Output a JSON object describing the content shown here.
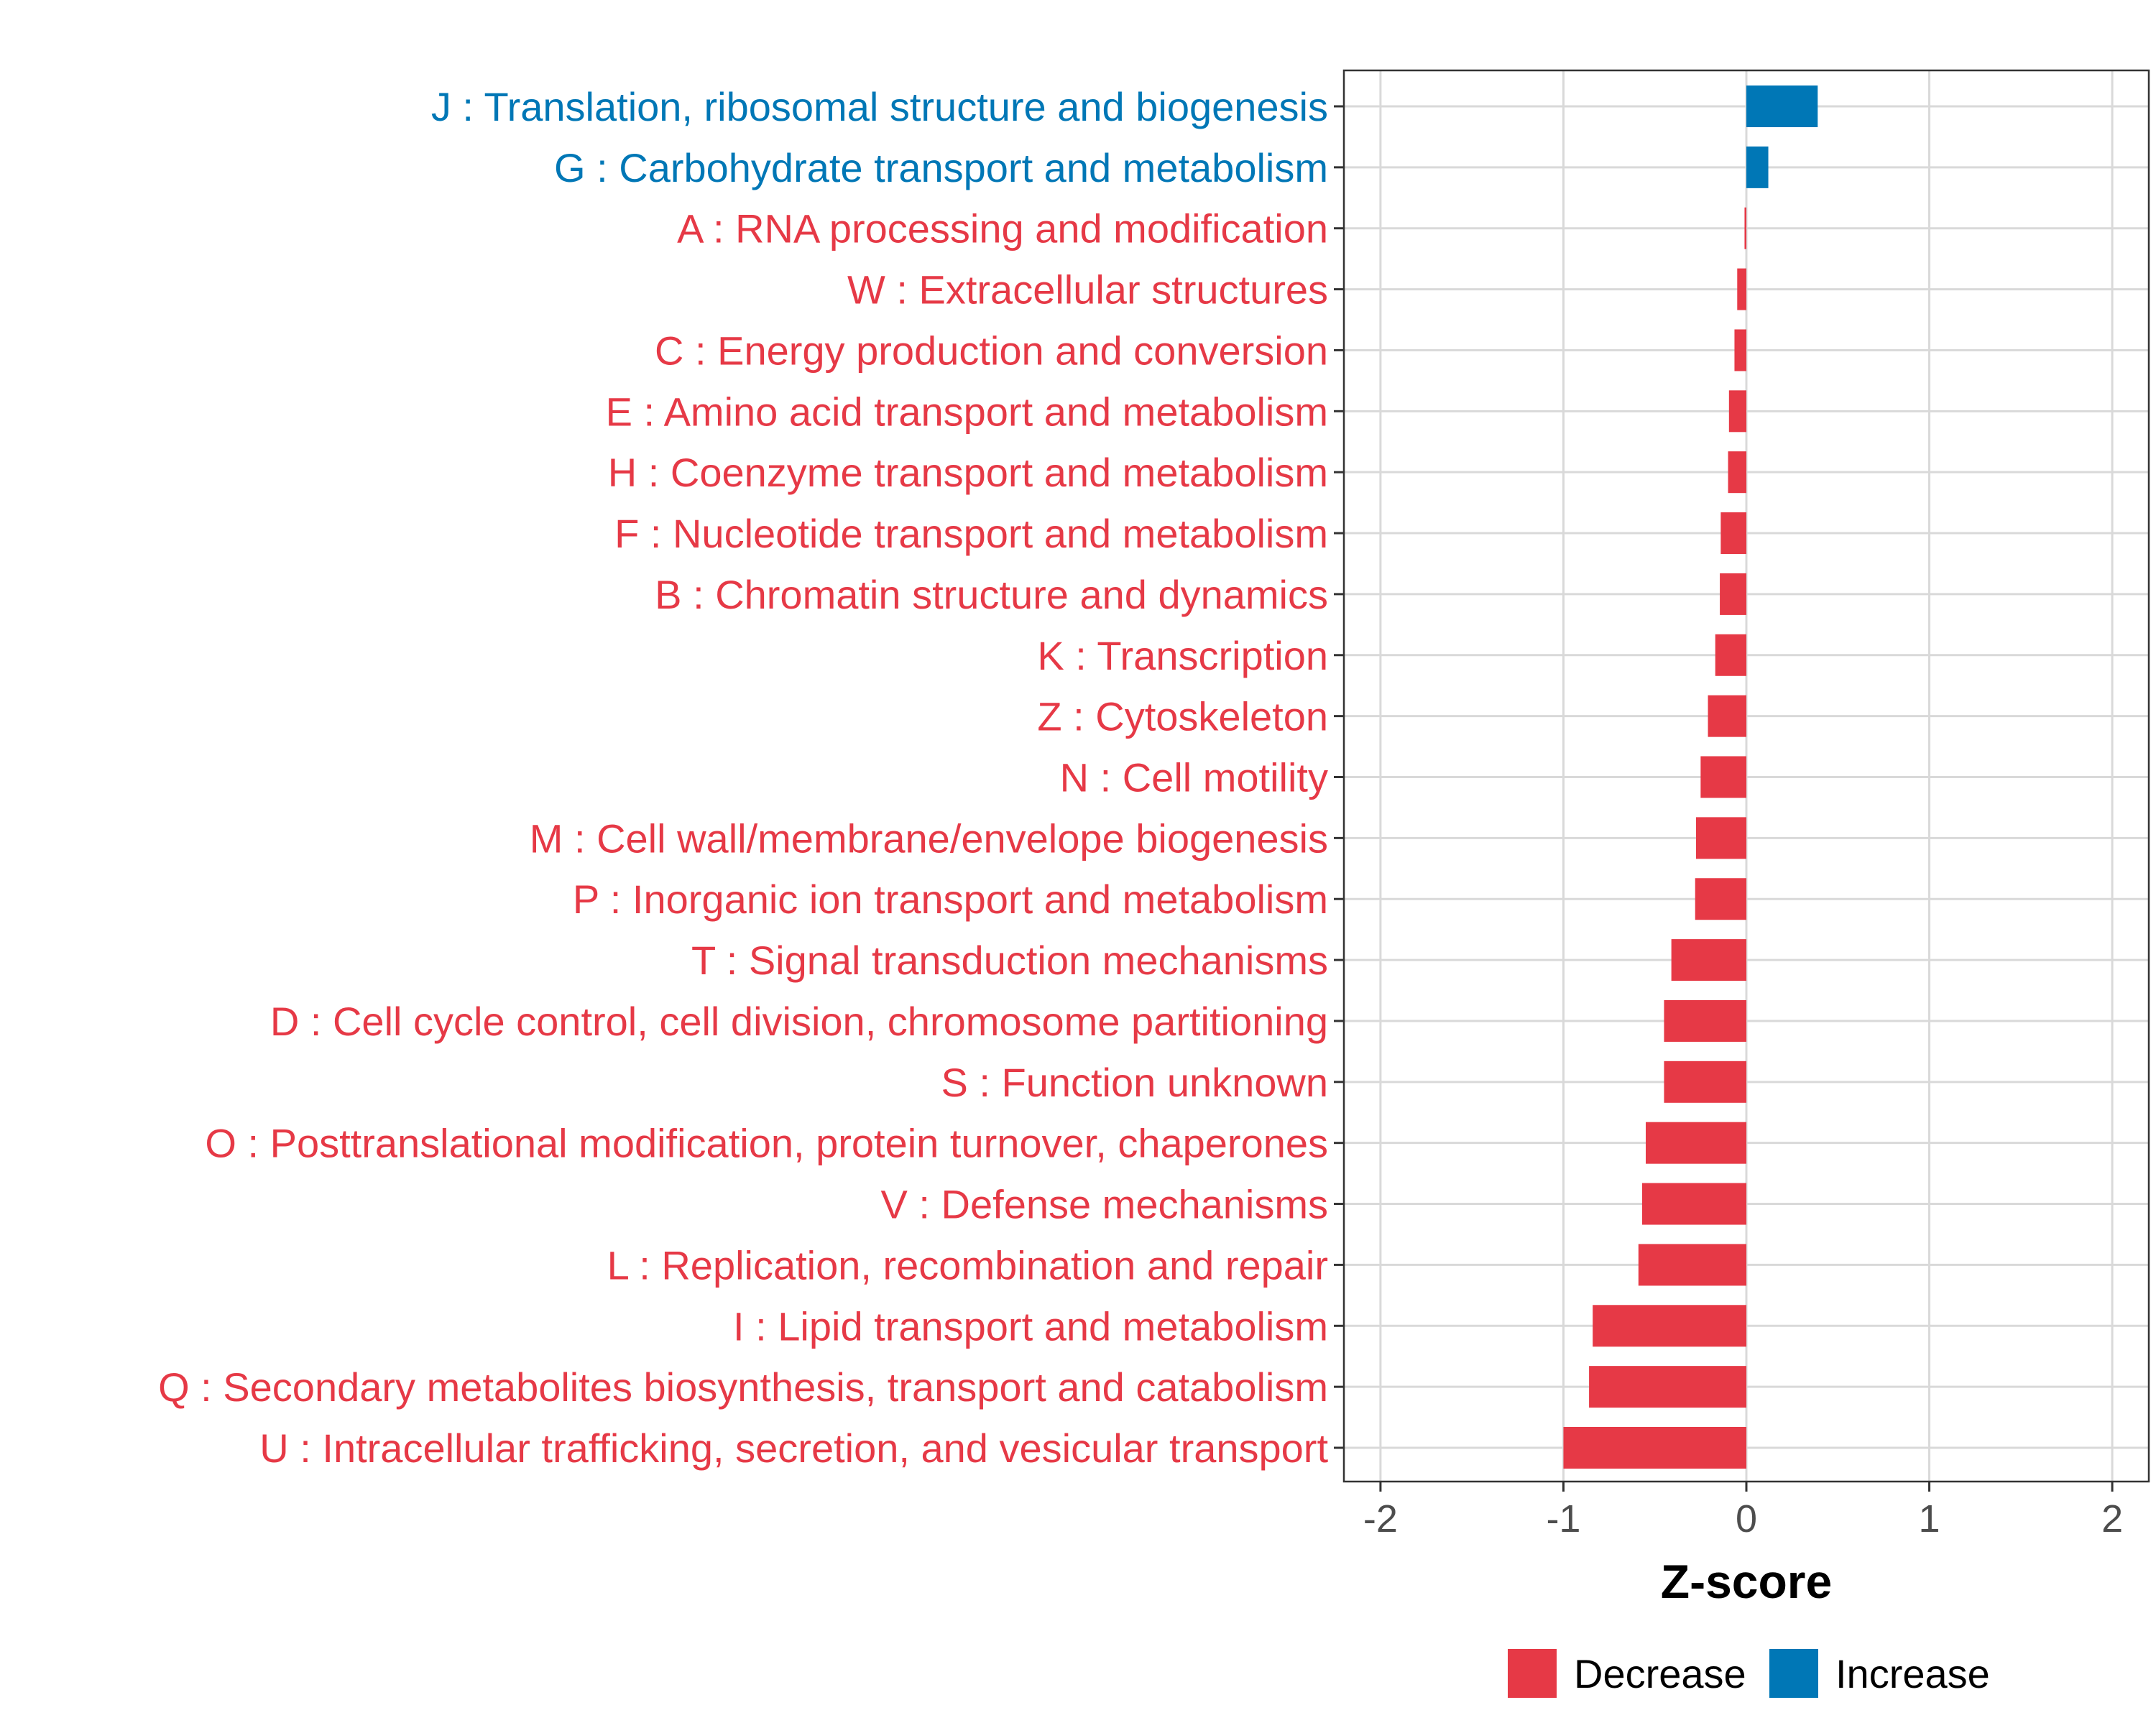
{
  "chart_data": {
    "type": "bar",
    "orientation": "horizontal",
    "xlabel": "Z-score",
    "ylabel": "",
    "xlim": [
      -2.2,
      2.2
    ],
    "xticks": [
      -2,
      -1,
      0,
      1,
      2
    ],
    "xtick_labels": [
      "-2",
      "-1",
      "0",
      "1",
      "2"
    ],
    "grid": true,
    "legend_position": "bottom",
    "colors": {
      "Decrease": "#e63946",
      "Increase": "#0077b6"
    },
    "legend": [
      {
        "label": "Decrease",
        "color": "#e63946"
      },
      {
        "label": "Increase",
        "color": "#0077b6"
      }
    ],
    "categories": [
      "J : Translation, ribosomal structure and biogenesis",
      "G : Carbohydrate transport and metabolism",
      "A : RNA processing and modification",
      "W : Extracellular structures",
      "C : Energy production and conversion",
      "E : Amino acid transport and metabolism",
      "H : Coenzyme transport and metabolism",
      "F : Nucleotide transport and metabolism",
      "B : Chromatin structure and dynamics",
      "K : Transcription",
      "Z : Cytoskeleton",
      "N : Cell motility",
      "M : Cell wall/membrane/envelope biogenesis",
      "P : Inorganic ion transport and metabolism",
      "T : Signal transduction mechanisms",
      "D : Cell cycle control, cell division, chromosome partitioning",
      "S : Function unknown",
      "O : Posttranslational modification, protein turnover, chaperones",
      "V : Defense mechanisms",
      "L : Replication, recombination and repair",
      "I : Lipid transport and metabolism",
      "Q : Secondary metabolites biosynthesis, transport and catabolism",
      "U : Intracellular trafficking, secretion, and vesicular transport"
    ],
    "values": [
      0.39,
      0.12,
      -0.01,
      -0.05,
      -0.065,
      -0.095,
      -0.1,
      -0.14,
      -0.145,
      -0.17,
      -0.21,
      -0.25,
      -0.275,
      -0.28,
      -0.41,
      -0.45,
      -0.45,
      -0.55,
      -0.57,
      -0.59,
      -0.84,
      -0.86,
      -1.0
    ],
    "groups": [
      "Increase",
      "Increase",
      "Decrease",
      "Decrease",
      "Decrease",
      "Decrease",
      "Decrease",
      "Decrease",
      "Decrease",
      "Decrease",
      "Decrease",
      "Decrease",
      "Decrease",
      "Decrease",
      "Decrease",
      "Decrease",
      "Decrease",
      "Decrease",
      "Decrease",
      "Decrease",
      "Decrease",
      "Decrease",
      "Decrease"
    ]
  }
}
